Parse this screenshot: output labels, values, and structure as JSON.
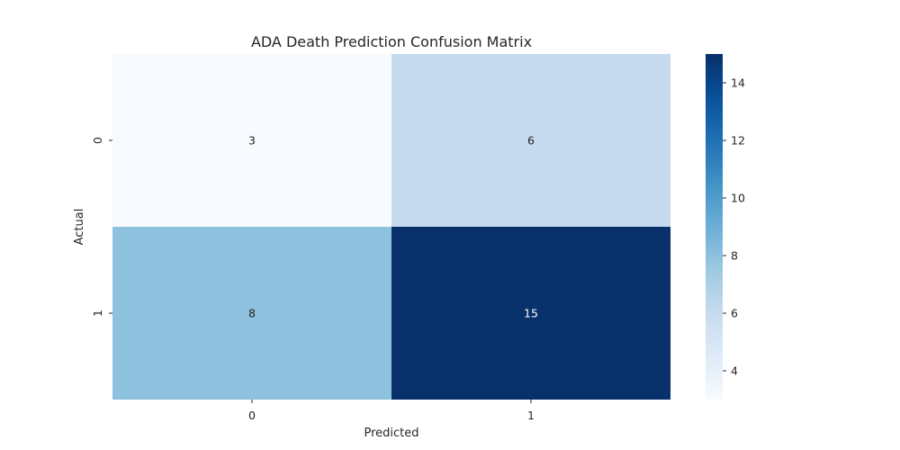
{
  "chart_data": {
    "type": "heatmap",
    "title": "ADA Death Prediction Confusion Matrix",
    "xlabel": "Predicted",
    "ylabel": "Actual",
    "x_categories": [
      "0",
      "1"
    ],
    "y_categories": [
      "0",
      "1"
    ],
    "values": [
      [
        3,
        6
      ],
      [
        8,
        15
      ]
    ],
    "colormap": "Blues",
    "color_range": [
      3,
      15
    ],
    "colorbar_ticks": [
      4,
      6,
      8,
      10,
      12,
      14
    ],
    "annotations": true,
    "grid": false
  }
}
